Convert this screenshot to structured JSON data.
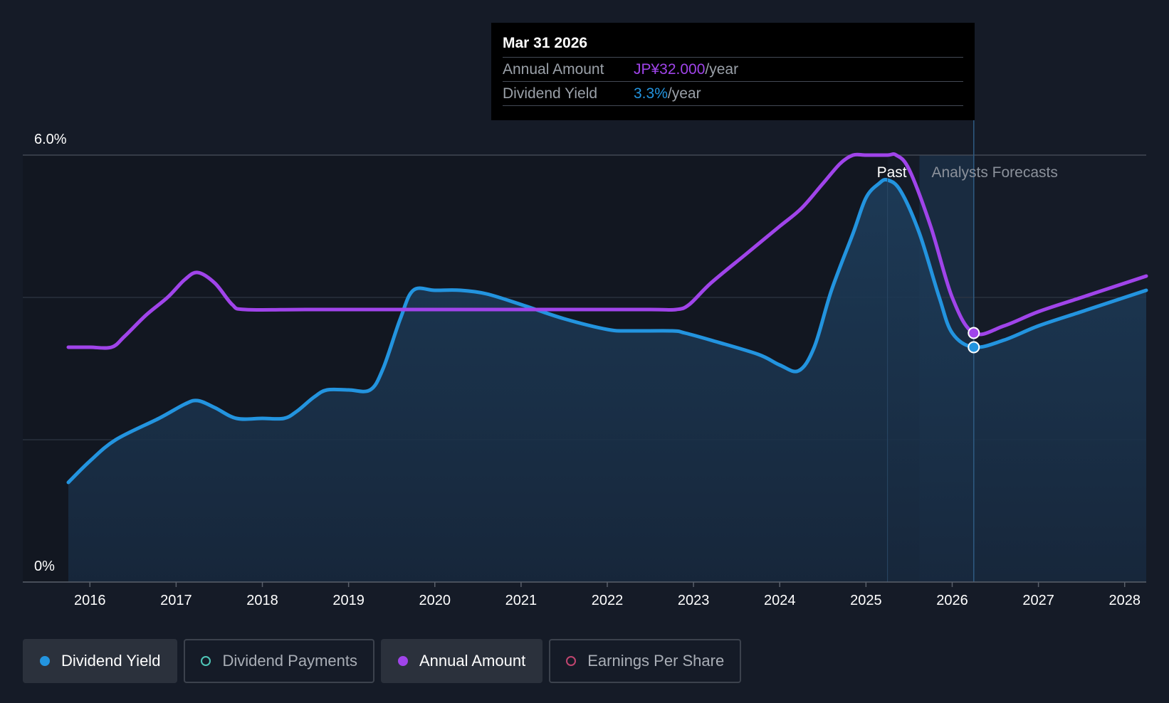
{
  "chart_data": {
    "type": "line",
    "y_axis": {
      "ticks": [
        "6.0%",
        "0%"
      ],
      "ylim": [
        0,
        6.0
      ],
      "unit": "%"
    },
    "x_axis": {
      "ticks": [
        "2016",
        "2017",
        "2018",
        "2019",
        "2020",
        "2021",
        "2022",
        "2023",
        "2024",
        "2025",
        "2026",
        "2027",
        "2028"
      ],
      "xlim": [
        2015.75,
        2028.25
      ]
    },
    "region_labels": {
      "past": "Past",
      "forecast": "Analysts Forecasts"
    },
    "past_end": 2025.25,
    "forecast_band_start": 2025.62,
    "cursor_x": 2026.25,
    "grid": true,
    "series": [
      {
        "name": "Dividend Yield",
        "color": "#2394df",
        "area": true,
        "points": [
          [
            2015.75,
            1.4
          ],
          [
            2016.0,
            1.7
          ],
          [
            2016.3,
            2.0
          ],
          [
            2016.8,
            2.3
          ],
          [
            2017.1,
            2.5
          ],
          [
            2017.25,
            2.55
          ],
          [
            2017.45,
            2.45
          ],
          [
            2017.7,
            2.3
          ],
          [
            2018.0,
            2.3
          ],
          [
            2018.25,
            2.3
          ],
          [
            2018.4,
            2.4
          ],
          [
            2018.6,
            2.6
          ],
          [
            2018.75,
            2.7
          ],
          [
            2019.0,
            2.7
          ],
          [
            2019.25,
            2.7
          ],
          [
            2019.4,
            3.0
          ],
          [
            2019.6,
            3.7
          ],
          [
            2019.75,
            4.1
          ],
          [
            2020.0,
            4.1
          ],
          [
            2020.3,
            4.1
          ],
          [
            2020.6,
            4.05
          ],
          [
            2021.0,
            3.9
          ],
          [
            2021.5,
            3.7
          ],
          [
            2022.0,
            3.55
          ],
          [
            2022.25,
            3.53
          ],
          [
            2022.75,
            3.53
          ],
          [
            2022.9,
            3.5
          ],
          [
            2023.2,
            3.4
          ],
          [
            2023.75,
            3.2
          ],
          [
            2024.0,
            3.05
          ],
          [
            2024.22,
            2.97
          ],
          [
            2024.4,
            3.3
          ],
          [
            2024.6,
            4.1
          ],
          [
            2024.85,
            4.9
          ],
          [
            2025.0,
            5.4
          ],
          [
            2025.15,
            5.6
          ],
          [
            2025.25,
            5.65
          ],
          [
            2025.4,
            5.5
          ],
          [
            2025.62,
            4.9
          ],
          [
            2025.85,
            4.0
          ],
          [
            2026.0,
            3.5
          ],
          [
            2026.25,
            3.3
          ],
          [
            2026.6,
            3.4
          ],
          [
            2027.0,
            3.6
          ],
          [
            2027.5,
            3.8
          ],
          [
            2028.0,
            4.0
          ],
          [
            2028.25,
            4.1
          ]
        ]
      },
      {
        "name": "Annual Amount",
        "color": "#a044ea",
        "area": false,
        "points": [
          [
            2015.75,
            3.3
          ],
          [
            2016.0,
            3.3
          ],
          [
            2016.25,
            3.3
          ],
          [
            2016.4,
            3.45
          ],
          [
            2016.65,
            3.75
          ],
          [
            2016.9,
            4.0
          ],
          [
            2017.1,
            4.25
          ],
          [
            2017.25,
            4.35
          ],
          [
            2017.45,
            4.2
          ],
          [
            2017.65,
            3.9
          ],
          [
            2017.8,
            3.83
          ],
          [
            2018.5,
            3.83
          ],
          [
            2019.5,
            3.83
          ],
          [
            2020.5,
            3.83
          ],
          [
            2021.5,
            3.83
          ],
          [
            2022.5,
            3.83
          ],
          [
            2022.8,
            3.83
          ],
          [
            2022.95,
            3.9
          ],
          [
            2023.2,
            4.2
          ],
          [
            2023.6,
            4.6
          ],
          [
            2024.0,
            5.0
          ],
          [
            2024.25,
            5.25
          ],
          [
            2024.5,
            5.6
          ],
          [
            2024.7,
            5.88
          ],
          [
            2024.85,
            6.0
          ],
          [
            2025.0,
            6.0
          ],
          [
            2025.25,
            6.0
          ],
          [
            2025.35,
            6.0
          ],
          [
            2025.5,
            5.8
          ],
          [
            2025.75,
            5.0
          ],
          [
            2026.0,
            4.0
          ],
          [
            2026.25,
            3.5
          ],
          [
            2026.6,
            3.6
          ],
          [
            2027.0,
            3.8
          ],
          [
            2027.5,
            4.0
          ],
          [
            2028.0,
            4.2
          ],
          [
            2028.25,
            4.3
          ]
        ]
      }
    ]
  },
  "tooltip": {
    "date": "Mar 31 2026",
    "rows": [
      {
        "label": "Annual Amount",
        "value": "JP¥32.000",
        "unit": "/year",
        "color": "#a044ea"
      },
      {
        "label": "Dividend Yield",
        "value": "3.3%",
        "unit": "/year",
        "color": "#2394df"
      }
    ]
  },
  "legend": [
    {
      "label": "Dividend Yield",
      "color": "#2394df",
      "active": true
    },
    {
      "label": "Dividend Payments",
      "color": "#4fc6b8",
      "active": false
    },
    {
      "label": "Annual Amount",
      "color": "#a044ea",
      "active": true
    },
    {
      "label": "Earnings Per Share",
      "color": "#c0456f",
      "active": false
    }
  ]
}
